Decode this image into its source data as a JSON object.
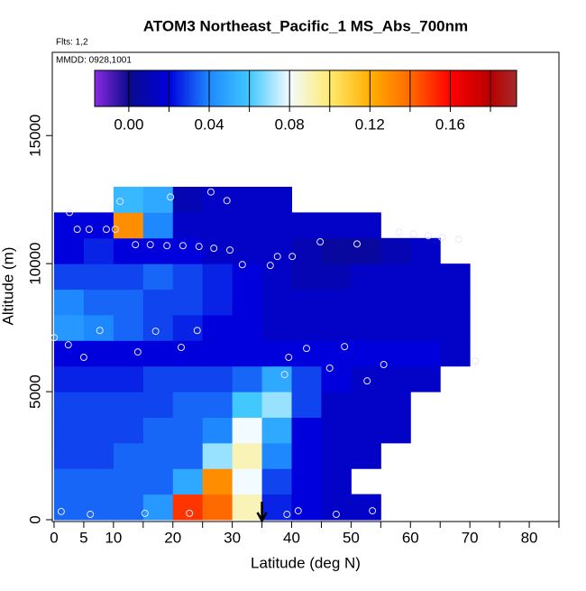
{
  "chart_data": {
    "type": "heatmap",
    "title": "ATOM3 Northeast_Pacific_1 MS_Abs_700nm",
    "subtitle": "Flts: 1,2",
    "annotation": "MMDD: 0928,1001",
    "x_label": "Latitude (deg N)",
    "y_label": "Altitude (m)",
    "xlim": [
      -0.3,
      85
    ],
    "ylim": [
      -70,
      18250
    ],
    "xticks": [
      0,
      5,
      10,
      20,
      30,
      40,
      50,
      60,
      70,
      80
    ],
    "xminor_ticks": [
      15,
      25,
      35,
      45,
      55,
      65,
      75,
      85
    ],
    "yticks": [
      0,
      5000,
      10000,
      15000
    ],
    "lat_edges": [
      0,
      5,
      10,
      15,
      20,
      25,
      30,
      35,
      40,
      45,
      50,
      55,
      60,
      65,
      70
    ],
    "alt_edges": [
      0,
      1000,
      2000,
      3000,
      4000,
      5000,
      6000,
      7000,
      8000,
      9000,
      10000,
      11000,
      12000,
      13000
    ],
    "values": [
      [
        0.035,
        0.035,
        0.035,
        0.045,
        0.15,
        0.14,
        0.09,
        0.025,
        0.02,
        0.015,
        0.015,
        null,
        null,
        null
      ],
      [
        0.035,
        0.035,
        0.035,
        0.035,
        0.05,
        0.13,
        0.08,
        0.03,
        0.02,
        0.015,
        null,
        null,
        null,
        null
      ],
      [
        0.03,
        0.03,
        0.035,
        0.035,
        0.035,
        0.07,
        0.09,
        0.04,
        0.02,
        0.015,
        0.015,
        null,
        null,
        null
      ],
      [
        0.03,
        0.03,
        0.03,
        0.035,
        0.035,
        0.04,
        0.08,
        0.05,
        0.02,
        0.015,
        0.015,
        0.015,
        null,
        null
      ],
      [
        0.03,
        0.03,
        0.03,
        0.03,
        0.035,
        0.035,
        0.06,
        0.07,
        0.03,
        0.015,
        0.015,
        0.015,
        null,
        null
      ],
      [
        0.025,
        0.025,
        0.025,
        0.03,
        0.03,
        0.03,
        0.035,
        0.05,
        0.03,
        0.02,
        0.015,
        0.015,
        0.015,
        null
      ],
      [
        0.02,
        0.02,
        0.02,
        0.02,
        0.02,
        0.02,
        0.02,
        0.02,
        0.02,
        0.02,
        0.02,
        0.02,
        0.02,
        0.015
      ],
      [
        0.045,
        0.04,
        0.035,
        0.03,
        0.025,
        0.02,
        0.02,
        0.015,
        0.015,
        0.015,
        0.015,
        0.015,
        0.015,
        0.015
      ],
      [
        0.04,
        0.035,
        0.035,
        0.03,
        0.03,
        0.025,
        0.02,
        0.015,
        0.015,
        0.015,
        0.015,
        0.015,
        0.015,
        0.015
      ],
      [
        0.03,
        0.03,
        0.03,
        0.035,
        0.03,
        0.025,
        0.02,
        0.015,
        0.01,
        0.01,
        0.015,
        0.015,
        0.015,
        0.015
      ],
      [
        0.02,
        0.025,
        0.02,
        0.02,
        0.02,
        0.015,
        0.015,
        0.015,
        0.01,
        0.005,
        0.005,
        0.01,
        0.015,
        null
      ],
      [
        0.02,
        0.02,
        0.13,
        0.04,
        0.015,
        0.015,
        0.015,
        0.015,
        0.015,
        0.015,
        0.015,
        null,
        null,
        null
      ],
      [
        null,
        null,
        0.055,
        0.05,
        0.01,
        0.015,
        0.015,
        0.015,
        null,
        null,
        null,
        null,
        null,
        null
      ]
    ],
    "points": {
      "lat": [
        2.6,
        3.9,
        5.9,
        8.8,
        10.3,
        11.1,
        19.6,
        26.4,
        29.1,
        13.7,
        16.2,
        19.0,
        21.7,
        24.4,
        26.9,
        29.6,
        31.7,
        36.4,
        37.6,
        40.1,
        44.8,
        51.0,
        58.1,
        60.5,
        63.0,
        65.3,
        68.1,
        7.7,
        17.1,
        24.1,
        0,
        2.4,
        5.0,
        14.1,
        21.4,
        39.5,
        42.5,
        48.9,
        46.4,
        55.5,
        38.8,
        52.7,
        70.9,
        1.2,
        6.1,
        15.3,
        22.8,
        39.2,
        41.1,
        47.5,
        53.6
      ],
      "alt": [
        12000,
        11340,
        11340,
        11340,
        11340,
        12430,
        12600,
        12800,
        12460,
        10740,
        10740,
        10700,
        10700,
        10670,
        10600,
        10530,
        9960,
        9930,
        10280,
        10280,
        10850,
        10770,
        11230,
        11160,
        11090,
        11020,
        10950,
        7390,
        7360,
        7390,
        7110,
        6830,
        6340,
        6550,
        6730,
        6340,
        6690,
        6760,
        5920,
        6060,
        5670,
        5420,
        6200,
        320,
        210,
        250,
        250,
        210,
        350,
        210,
        350
      ]
    },
    "arrow_lat": 35,
    "clim": [
      -0.017,
      0.193
    ],
    "colorbar_ticks": [
      {
        "value": 0,
        "label": "0.00"
      },
      {
        "value": 0.04,
        "label": "0.04"
      },
      {
        "value": 0.08,
        "label": "0.08"
      },
      {
        "value": 0.12,
        "label": "0.12"
      },
      {
        "value": 0.16,
        "label": "0.16"
      }
    ],
    "colorbar_minor": [
      0.02,
      0.06,
      0.1,
      0.14,
      0.18
    ],
    "colorscale": [
      {
        "value": -0.017,
        "color": "#8a2be2"
      },
      {
        "value": 0.0,
        "color": "#0a0a8a"
      },
      {
        "value": 0.02,
        "color": "#0000dd"
      },
      {
        "value": 0.04,
        "color": "#1e88ff"
      },
      {
        "value": 0.06,
        "color": "#40c8ff"
      },
      {
        "value": 0.08,
        "color": "#f2fbff"
      },
      {
        "value": 0.1,
        "color": "#ffea70"
      },
      {
        "value": 0.12,
        "color": "#ffb000"
      },
      {
        "value": 0.14,
        "color": "#ff6a00"
      },
      {
        "value": 0.16,
        "color": "#ff0000"
      },
      {
        "value": 0.18,
        "color": "#b80000"
      },
      {
        "value": 0.193,
        "color": "#a52a2a"
      }
    ]
  }
}
